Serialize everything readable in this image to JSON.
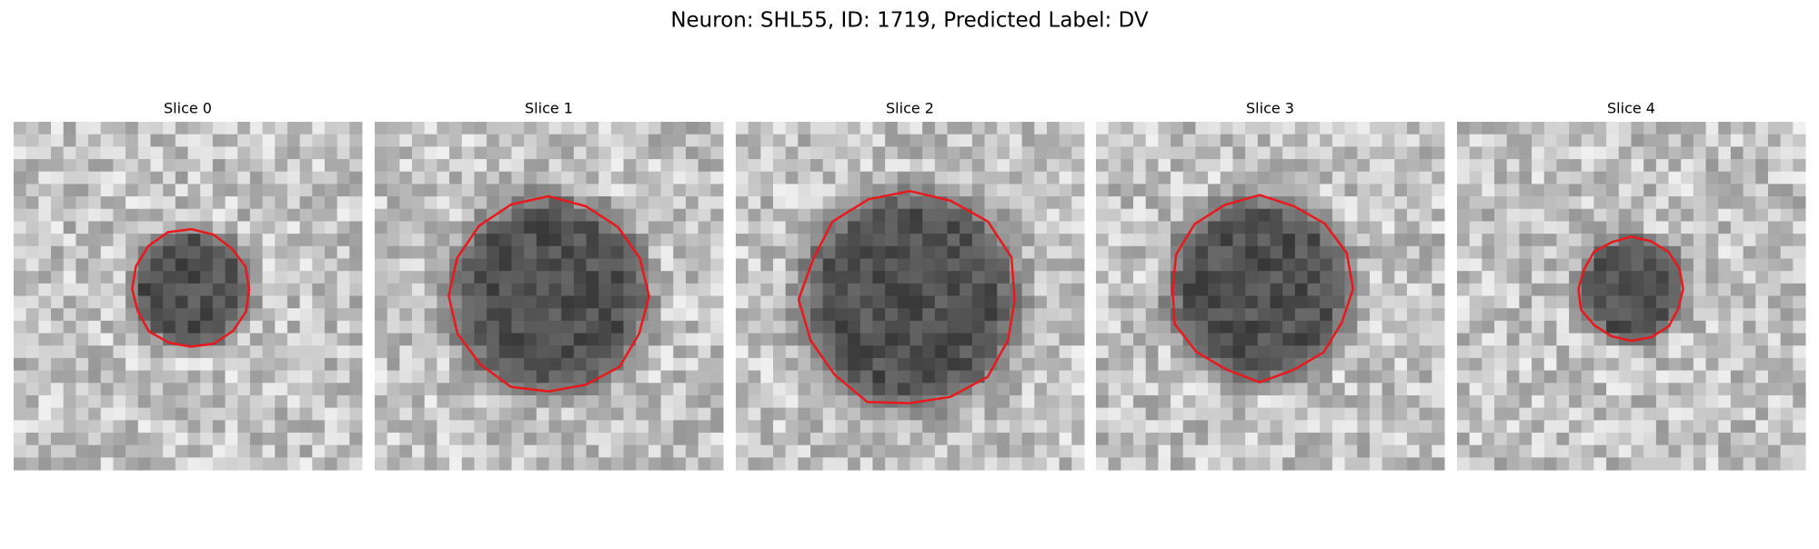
{
  "figure": {
    "title": "Neuron: SHL55, ID: 1719, Predicted Label: DV",
    "panels": [
      {
        "title": "Slice 0"
      },
      {
        "title": "Slice 1"
      },
      {
        "title": "Slice 2"
      },
      {
        "title": "Slice 3"
      },
      {
        "title": "Slice 4"
      }
    ]
  }
}
